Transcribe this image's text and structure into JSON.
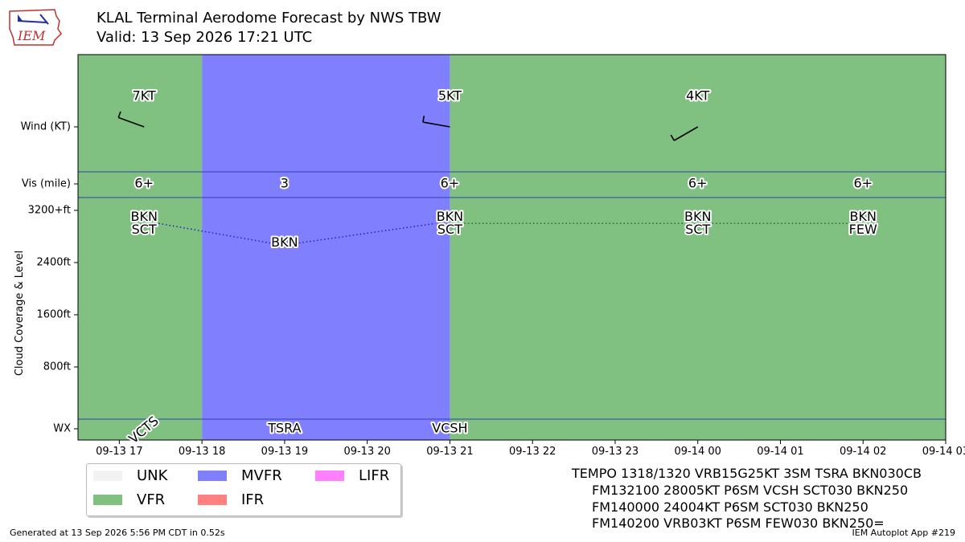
{
  "header": {
    "title_line1": "KLAL Terminal Aerodome Forecast by NWS TBW",
    "title_line2": "Valid: 13 Sep 2026 17:21 UTC",
    "logo_text": "IEM"
  },
  "footer": {
    "left": "Generated at 13 Sep 2026 5:56 PM CDT in 0.52s",
    "right": "IEM Autoplot App #219"
  },
  "taf_text": [
    "TEMPO 1318/1320 VRB15G25KT 3SM TSRA BKN030CB",
    "FM132100 28005KT P6SM VCSH SCT030 BKN250",
    "FM140000 24004KT P6SM SCT030 BKN250",
    "FM140200 VRB03KT P6SM FEW030 BKN250="
  ],
  "legend": [
    {
      "label": "UNK",
      "color": "#f2f2f2"
    },
    {
      "label": "VFR",
      "color": "#80c080"
    },
    {
      "label": "MVFR",
      "color": "#8080ff"
    },
    {
      "label": "IFR",
      "color": "#ff8080"
    },
    {
      "label": "LIFR",
      "color": "#ff80ff"
    }
  ],
  "chart_data": {
    "type": "timeline",
    "ylabel": "Cloud Coverage & Level",
    "row_labels": [
      "Wind (KT)",
      "Vis (mile)",
      "WX"
    ],
    "y_ticks": [
      "3200+ft",
      "2400ft",
      "1600ft",
      "800ft"
    ],
    "x_ticks": [
      "09-13 17",
      "09-13 18",
      "09-13 19",
      "09-13 20",
      "09-13 21",
      "09-13 22",
      "09-13 23",
      "09-14 00",
      "09-14 01",
      "09-14 02",
      "09-14 03"
    ],
    "x_range_hours": [
      16.5,
      27.0
    ],
    "category_periods": [
      {
        "start": 16.5,
        "end": 18.0,
        "category": "VFR",
        "color": "#80c080"
      },
      {
        "start": 18.0,
        "end": 21.0,
        "category": "MVFR",
        "color": "#8080ff"
      },
      {
        "start": 21.0,
        "end": 27.0,
        "category": "VFR",
        "color": "#80c080"
      }
    ],
    "forecasts": [
      {
        "time": 17.3,
        "wind_label": "7KT",
        "wind_dir": 290,
        "vis": "6+",
        "cloud_top": "BKN",
        "cloud_bottom": "SCT",
        "wx": "VCTS"
      },
      {
        "time": 19.0,
        "wind_label": "",
        "wind_dir": null,
        "vis": "3",
        "cloud_top": "BKN",
        "cloud_bottom": "",
        "wx": "TSRA"
      },
      {
        "time": 21.0,
        "wind_label": "5KT",
        "wind_dir": 280,
        "vis": "6+",
        "cloud_top": "BKN",
        "cloud_bottom": "SCT",
        "wx": "VCSH"
      },
      {
        "time": 24.0,
        "wind_label": "4KT",
        "wind_dir": 240,
        "vis": "6+",
        "cloud_top": "BKN",
        "cloud_bottom": "SCT",
        "wx": ""
      },
      {
        "time": 26.0,
        "wind_label": "",
        "wind_dir": null,
        "vis": "6+",
        "cloud_top": "BKN",
        "cloud_bottom": "FEW",
        "wx": ""
      }
    ],
    "cloud_levels_ft": [
      3000,
      2700,
      3000,
      3000,
      3000
    ],
    "cloud_line_colors": [
      "#2020c0",
      "#2020c0",
      "#207020",
      "#207020"
    ]
  }
}
